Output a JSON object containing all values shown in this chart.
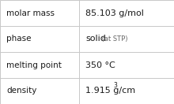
{
  "rows": [
    {
      "label": "molar mass",
      "value": "85.103 g/mol",
      "type": "plain"
    },
    {
      "label": "phase",
      "value": "solid",
      "suffix": " (at STP)",
      "type": "suffix"
    },
    {
      "label": "melting point",
      "value": "350 °C",
      "type": "plain"
    },
    {
      "label": "density",
      "value": "1.915 g/cm",
      "superscript": "3",
      "type": "super"
    }
  ],
  "col_split": 0.455,
  "background_color": "#ffffff",
  "border_color": "#c8c8c8",
  "label_fontsize": 7.5,
  "value_fontsize": 8.0,
  "suffix_fontsize": 6.0,
  "super_fontsize": 5.5,
  "font_family": "DejaVu Sans",
  "text_color": "#1a1a1a",
  "suffix_color": "#666666"
}
